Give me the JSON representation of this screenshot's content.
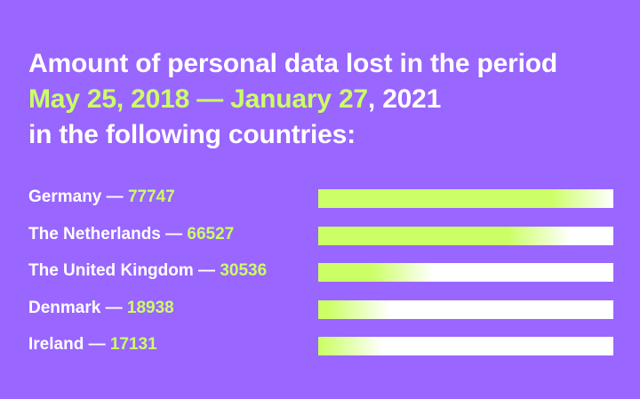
{
  "title": {
    "line1": "Amount of personal data lost in the period",
    "line2_highlight": "May 25, 2018 — January 27",
    "line2_rest": ", 2021",
    "line3": "in the following countries:"
  },
  "colors": {
    "background": "#9966ff",
    "accent": "#ccff66",
    "track": "#ffffff",
    "text": "#ffffff"
  },
  "chart_data": {
    "type": "bar",
    "orientation": "horizontal",
    "title": "Amount of personal data lost in the period May 25, 2018 — January 27, 2021 in the following countries:",
    "separator": " — ",
    "categories": [
      "Germany",
      "The Netherlands",
      "The United Kingdom",
      "Denmark",
      "Ireland"
    ],
    "values": [
      77747,
      66527,
      30536,
      18938,
      17131
    ],
    "xlim": [
      0,
      77747
    ]
  }
}
